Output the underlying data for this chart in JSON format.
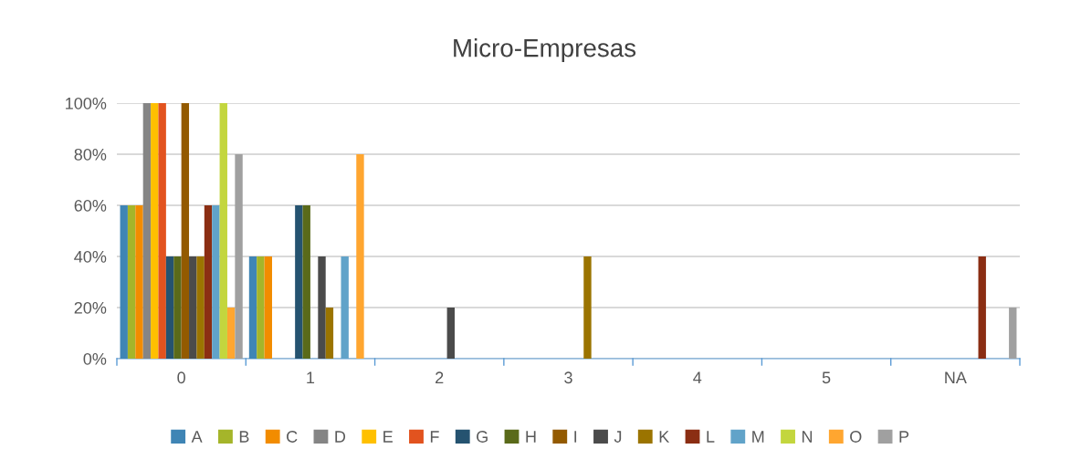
{
  "chart_data": {
    "type": "bar",
    "title": "Micro-Empresas",
    "categories": [
      "0",
      "1",
      "2",
      "3",
      "4",
      "5",
      "NA"
    ],
    "ylim": [
      0,
      100
    ],
    "yticks": [
      {
        "value": 0,
        "label": "0%"
      },
      {
        "value": 20,
        "label": "20%"
      },
      {
        "value": 40,
        "label": "40%"
      },
      {
        "value": 60,
        "label": "60%"
      },
      {
        "value": 80,
        "label": "80%"
      },
      {
        "value": 100,
        "label": "100%"
      }
    ],
    "grid": "y",
    "legend": "bottom",
    "series": [
      {
        "name": "A",
        "color": "#3f85b5",
        "values": [
          60,
          40,
          0,
          0,
          0,
          0,
          0
        ]
      },
      {
        "name": "B",
        "color": "#a5b52a",
        "values": [
          60,
          40,
          0,
          0,
          0,
          0,
          0
        ]
      },
      {
        "name": "C",
        "color": "#f28c00",
        "values": [
          60,
          40,
          0,
          0,
          0,
          0,
          0
        ]
      },
      {
        "name": "D",
        "color": "#858585",
        "values": [
          100,
          0,
          0,
          0,
          0,
          0,
          0
        ]
      },
      {
        "name": "E",
        "color": "#ffc000",
        "values": [
          100,
          0,
          0,
          0,
          0,
          0,
          0
        ]
      },
      {
        "name": "F",
        "color": "#e2531f",
        "values": [
          100,
          0,
          0,
          0,
          0,
          0,
          0
        ]
      },
      {
        "name": "G",
        "color": "#255370",
        "values": [
          40,
          60,
          0,
          0,
          0,
          0,
          0
        ]
      },
      {
        "name": "H",
        "color": "#5a6a1a",
        "values": [
          40,
          60,
          0,
          0,
          0,
          0,
          0
        ]
      },
      {
        "name": "I",
        "color": "#935a00",
        "values": [
          100,
          0,
          0,
          0,
          0,
          0,
          0
        ]
      },
      {
        "name": "J",
        "color": "#4b4b4b",
        "values": [
          40,
          40,
          20,
          0,
          0,
          0,
          0
        ]
      },
      {
        "name": "K",
        "color": "#9b7400",
        "values": [
          40,
          20,
          0,
          40,
          0,
          0,
          0
        ]
      },
      {
        "name": "L",
        "color": "#8b2e13",
        "values": [
          60,
          0,
          0,
          0,
          0,
          0,
          40
        ]
      },
      {
        "name": "M",
        "color": "#61a3c9",
        "values": [
          60,
          40,
          0,
          0,
          0,
          0,
          0
        ]
      },
      {
        "name": "N",
        "color": "#c3d63e",
        "values": [
          100,
          0,
          0,
          0,
          0,
          0,
          0
        ]
      },
      {
        "name": "O",
        "color": "#ffa630",
        "values": [
          20,
          80,
          0,
          0,
          0,
          0,
          0
        ]
      },
      {
        "name": "P",
        "color": "#a0a0a0",
        "values": [
          80,
          0,
          0,
          0,
          0,
          0,
          20
        ]
      }
    ]
  }
}
